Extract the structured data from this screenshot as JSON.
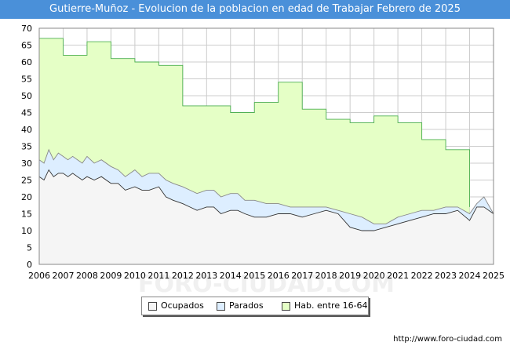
{
  "chart_data": {
    "type": "area",
    "title": "Gutierre-Muñoz - Evolucion de la poblacion en edad de Trabajar Febrero de 2025",
    "xlabel": "",
    "ylabel": "",
    "xlim": [
      2006,
      2025
    ],
    "ylim": [
      0,
      70
    ],
    "y_ticks": [
      0,
      5,
      10,
      15,
      20,
      25,
      30,
      35,
      40,
      45,
      50,
      55,
      60,
      65,
      70
    ],
    "x_ticks": [
      2006,
      2007,
      2008,
      2009,
      2010,
      2011,
      2012,
      2013,
      2014,
      2015,
      2016,
      2017,
      2018,
      2019,
      2020,
      2021,
      2022,
      2023,
      2024,
      2025
    ],
    "grid": true,
    "legend_position": "bottom-center",
    "series": [
      {
        "name": "Hab. entre 16-64",
        "color": "#e5ffc6",
        "line_color": "#4caf50",
        "x": [
          2006,
          2007,
          2007,
          2008,
          2008,
          2009,
          2009,
          2010,
          2010,
          2011,
          2011,
          2012,
          2012,
          2013,
          2013,
          2014,
          2014,
          2015,
          2015,
          2016,
          2016,
          2017,
          2017,
          2018,
          2018,
          2019,
          2019,
          2020,
          2020,
          2021,
          2021,
          2022,
          2022,
          2023,
          2023,
          2024,
          2024
        ],
        "values": [
          67,
          67,
          62,
          62,
          66,
          66,
          61,
          61,
          60,
          60,
          59,
          59,
          47,
          47,
          47,
          47,
          45,
          45,
          48,
          48,
          54,
          54,
          46,
          46,
          43,
          43,
          42,
          42,
          44,
          44,
          42,
          42,
          37,
          37,
          34,
          34,
          17
        ]
      },
      {
        "name": "Parados",
        "color": "#ddeeff",
        "line_color": "#888888",
        "x": [
          2006,
          2006.2,
          2006.4,
          2006.6,
          2006.8,
          2007,
          2007.2,
          2007.4,
          2007.6,
          2007.8,
          2008,
          2008.3,
          2008.6,
          2009,
          2009.3,
          2009.6,
          2010,
          2010.3,
          2010.6,
          2011,
          2011.3,
          2011.6,
          2012,
          2012.3,
          2012.6,
          2013,
          2013.3,
          2013.6,
          2014,
          2014.3,
          2014.6,
          2015,
          2015.5,
          2016,
          2016.5,
          2017,
          2017.5,
          2018,
          2018.5,
          2019,
          2019.5,
          2020,
          2020.5,
          2021,
          2021.5,
          2022,
          2022.5,
          2023,
          2023.5,
          2024,
          2024.3,
          2024.6,
          2025
        ],
        "values": [
          31,
          30,
          34,
          31,
          33,
          32,
          31,
          32,
          31,
          30,
          32,
          30,
          31,
          29,
          28,
          26,
          28,
          26,
          27,
          27,
          25,
          24,
          23,
          22,
          21,
          22,
          22,
          20,
          21,
          21,
          19,
          19,
          18,
          18,
          17,
          17,
          17,
          17,
          16,
          15,
          14,
          12,
          12,
          14,
          15,
          16,
          16,
          17,
          17,
          15,
          18,
          20,
          15
        ]
      },
      {
        "name": "Ocupados",
        "color": "#f5f5f5",
        "line_color": "#333333",
        "x": [
          2006,
          2006.2,
          2006.4,
          2006.6,
          2006.8,
          2007,
          2007.2,
          2007.4,
          2007.6,
          2007.8,
          2008,
          2008.3,
          2008.6,
          2009,
          2009.3,
          2009.6,
          2010,
          2010.3,
          2010.6,
          2011,
          2011.3,
          2011.6,
          2012,
          2012.3,
          2012.6,
          2013,
          2013.3,
          2013.6,
          2014,
          2014.3,
          2014.6,
          2015,
          2015.5,
          2016,
          2016.5,
          2017,
          2017.5,
          2018,
          2018.5,
          2019,
          2019.5,
          2020,
          2020.5,
          2021,
          2021.5,
          2022,
          2022.5,
          2023,
          2023.5,
          2024,
          2024.3,
          2024.6,
          2025
        ],
        "values": [
          26,
          25,
          28,
          26,
          27,
          27,
          26,
          27,
          26,
          25,
          26,
          25,
          26,
          24,
          24,
          22,
          23,
          22,
          22,
          23,
          20,
          19,
          18,
          17,
          16,
          17,
          17,
          15,
          16,
          16,
          15,
          14,
          14,
          15,
          15,
          14,
          15,
          16,
          15,
          11,
          10,
          10,
          11,
          12,
          13,
          14,
          15,
          15,
          16,
          13,
          17,
          17,
          15
        ]
      }
    ]
  },
  "legend": {
    "items": [
      {
        "label": "Ocupados",
        "color": "#f5f5f5"
      },
      {
        "label": "Parados",
        "color": "#ddeeff"
      },
      {
        "label": "Hab. entre 16-64",
        "color": "#e5ffc6"
      }
    ]
  },
  "watermark": "FORO-CIUDAD.COM",
  "source": "http://www.foro-ciudad.com"
}
